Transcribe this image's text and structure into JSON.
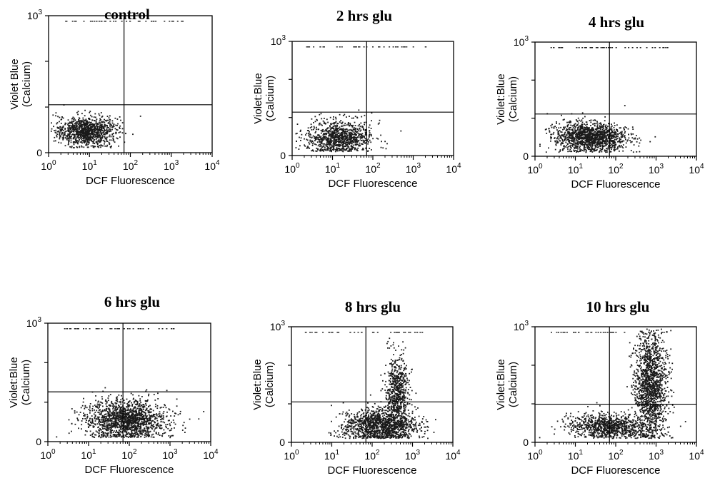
{
  "chart_data": [
    {
      "type": "scatter",
      "title": "control",
      "xlabel": "DCF Fluorescence",
      "ylabel_line1": "Violet Blue",
      "ylabel_line2": "(Calcium)",
      "xscale": "log",
      "xlim": [
        1,
        10000
      ],
      "ylim": [
        0,
        1000
      ],
      "x_ticks": [
        {
          "base": "10",
          "exp": "0"
        },
        {
          "base": "10",
          "exp": "1"
        },
        {
          "base": "10",
          "exp": "2"
        },
        {
          "base": "10",
          "exp": "3"
        },
        {
          "base": "10",
          "exp": "4"
        }
      ],
      "y_ticks": [
        {
          "base": "0",
          "exp": ""
        },
        {
          "base": "10",
          "exp": "3"
        }
      ],
      "gate_x": 70,
      "gate_y": 350,
      "clusters": [
        {
          "x_log_center": 0.9,
          "x_log_sd": 0.35,
          "y_center": 160,
          "y_sd": 55,
          "n": 1100
        }
      ]
    },
    {
      "type": "scatter",
      "title": "2 hrs glu",
      "xlabel": "DCF Fluorescence",
      "ylabel_line1": "Violet:Blue",
      "ylabel_line2": "(Calcium)",
      "xscale": "log",
      "xlim": [
        1,
        10000
      ],
      "ylim": [
        0,
        1000
      ],
      "x_ticks": [
        {
          "base": "10",
          "exp": "0"
        },
        {
          "base": "10",
          "exp": "1"
        },
        {
          "base": "10",
          "exp": "2"
        },
        {
          "base": "10",
          "exp": "3"
        },
        {
          "base": "10",
          "exp": "4"
        }
      ],
      "y_ticks": [
        {
          "base": "0",
          "exp": ""
        },
        {
          "base": "10",
          "exp": "3"
        }
      ],
      "gate_x": 70,
      "gate_y": 380,
      "clusters": [
        {
          "x_log_center": 1.15,
          "x_log_sd": 0.4,
          "y_center": 160,
          "y_sd": 75,
          "n": 1000
        }
      ]
    },
    {
      "type": "scatter",
      "title": "4 hrs glu",
      "xlabel": "DCF Fluorescence",
      "ylabel_line1": "Violet:Blue",
      "ylabel_line2": "(Calcium)",
      "xscale": "log",
      "xlim": [
        1,
        10000
      ],
      "ylim": [
        0,
        1000
      ],
      "x_ticks": [
        {
          "base": "10",
          "exp": "0"
        },
        {
          "base": "10",
          "exp": "1"
        },
        {
          "base": "10",
          "exp": "2"
        },
        {
          "base": "10",
          "exp": "3"
        },
        {
          "base": "10",
          "exp": "4"
        }
      ],
      "y_ticks": [
        {
          "base": "0",
          "exp": ""
        },
        {
          "base": "10",
          "exp": "3"
        }
      ],
      "gate_x": 70,
      "gate_y": 370,
      "clusters": [
        {
          "x_log_center": 1.35,
          "x_log_sd": 0.45,
          "y_center": 170,
          "y_sd": 65,
          "n": 1400
        }
      ]
    },
    {
      "type": "scatter",
      "title": "6 hrs glu",
      "xlabel": "DCF Fluorescence",
      "ylabel_line1": "Violet:Blue",
      "ylabel_line2": "(Calcium)",
      "xscale": "log",
      "xlim": [
        1,
        10000
      ],
      "ylim": [
        0,
        1000
      ],
      "x_ticks": [
        {
          "base": "10",
          "exp": "0"
        },
        {
          "base": "10",
          "exp": "1"
        },
        {
          "base": "10",
          "exp": "2"
        },
        {
          "base": "10",
          "exp": "3"
        },
        {
          "base": "10",
          "exp": "4"
        }
      ],
      "y_ticks": [
        {
          "base": "0",
          "exp": ""
        },
        {
          "base": "10",
          "exp": "3"
        }
      ],
      "gate_x": 70,
      "gate_y": 420,
      "clusters": [
        {
          "x_log_center": 1.9,
          "x_log_sd": 0.5,
          "y_center": 190,
          "y_sd": 85,
          "n": 1600
        }
      ]
    },
    {
      "type": "scatter",
      "title": "8 hrs glu",
      "xlabel": "DCF Fluorescence",
      "ylabel_line1": "Violet:Blue",
      "ylabel_line2": "(Calcium)",
      "xscale": "log",
      "xlim": [
        1,
        10000
      ],
      "ylim": [
        0,
        1000
      ],
      "x_ticks": [
        {
          "base": "10",
          "exp": "0"
        },
        {
          "base": "10",
          "exp": "1"
        },
        {
          "base": "10",
          "exp": "2"
        },
        {
          "base": "10",
          "exp": "3"
        },
        {
          "base": "10",
          "exp": "4"
        }
      ],
      "y_ticks": [
        {
          "base": "0",
          "exp": ""
        },
        {
          "base": "10",
          "exp": "3"
        }
      ],
      "gate_x": 70,
      "gate_y": 350,
      "clusters": [
        {
          "x_log_center": 2.2,
          "x_log_sd": 0.45,
          "y_center": 150,
          "y_sd": 70,
          "n": 1300
        },
        {
          "x_log_center": 2.6,
          "x_log_sd": 0.15,
          "y_center": 420,
          "y_sd": 160,
          "n": 700
        }
      ]
    },
    {
      "type": "scatter",
      "title": "10 hrs glu",
      "xlabel": "DCF Fluorescence",
      "ylabel_line1": "Violet:Blue",
      "ylabel_line2": "(Calcium)",
      "xscale": "log",
      "xlim": [
        1,
        10000
      ],
      "ylim": [
        0,
        1000
      ],
      "x_ticks": [
        {
          "base": "10",
          "exp": "0"
        },
        {
          "base": "10",
          "exp": "1"
        },
        {
          "base": "10",
          "exp": "2"
        },
        {
          "base": "10",
          "exp": "3"
        },
        {
          "base": "10",
          "exp": "4"
        }
      ],
      "y_ticks": [
        {
          "base": "0",
          "exp": ""
        },
        {
          "base": "10",
          "exp": "3"
        }
      ],
      "gate_x": 70,
      "gate_y": 330,
      "clusters": [
        {
          "x_log_center": 1.8,
          "x_log_sd": 0.5,
          "y_center": 140,
          "y_sd": 55,
          "n": 900
        },
        {
          "x_log_center": 2.85,
          "x_log_sd": 0.2,
          "y_center": 500,
          "y_sd": 230,
          "n": 1500
        }
      ]
    }
  ]
}
